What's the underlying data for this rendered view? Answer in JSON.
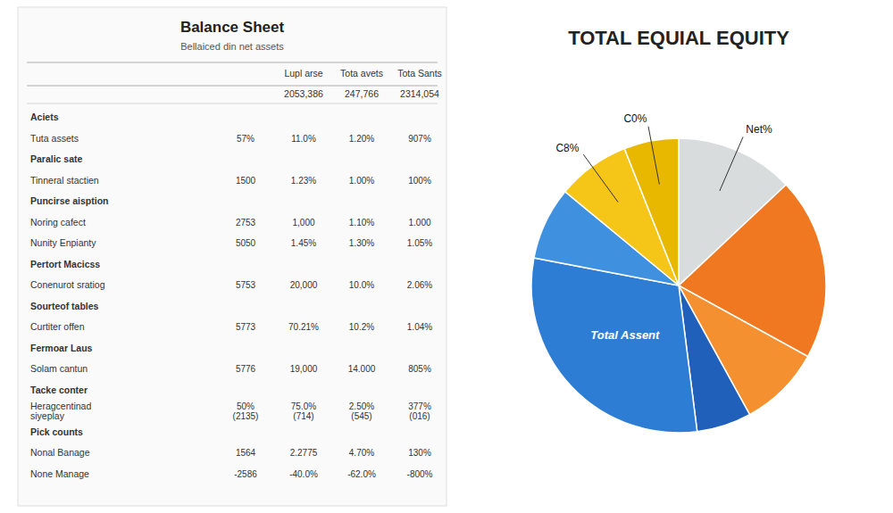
{
  "chart_data": [
    {
      "type": "pie",
      "title": "TOTAL EQUIAL EQUITY",
      "categories": [
        "Net%",
        null,
        null,
        null,
        "Total Assent",
        null,
        "C8%",
        "C0%"
      ],
      "values": [
        13,
        20,
        9,
        6,
        30,
        8,
        8,
        6
      ],
      "colors": [
        "#d8dcdc",
        "#f07820",
        "#f59030",
        "#2060bb",
        "#2e7dd4",
        "#4090e0",
        "#f5c518",
        "#e8b800"
      ]
    },
    {
      "type": "table",
      "title": "Balance Sheet",
      "subtitle": "Bellaiced din net assets",
      "columns": [
        null,
        "Lupl arse",
        "Tota avets",
        "Tota Sants"
      ],
      "subheaders": [
        null,
        "2053,386",
        "247,766",
        "2314,054"
      ],
      "rows": [
        [
          "Aciets"
        ],
        [
          "Tuta assets",
          "57%",
          "11.0%",
          "1.20%",
          "907%"
        ],
        [
          "Paralic sate"
        ],
        [
          "Tinneral stactien",
          "1500",
          "1.23%",
          "1.00%",
          "100%"
        ],
        [
          "Puncirse aisption"
        ],
        [
          "Noring cafect",
          "2753",
          "1,000",
          "1.10%",
          "1.000"
        ],
        [
          "Nunity Enpianty",
          "5050",
          "1.45%",
          "1.30%",
          "1.05%"
        ],
        [
          "Pertort Macicss"
        ],
        [
          "Conenurot sratiog",
          "5753",
          "20,000",
          "10.0%",
          "2.06%"
        ],
        [
          "Sourteof tables"
        ],
        [
          "Curtiter offen",
          "5773",
          "70.21%",
          "10.2%",
          "1.04%"
        ],
        [
          "Fermoar Laus"
        ],
        [
          "Solam cantun",
          "5776",
          "19,000",
          "14.000",
          "805%"
        ],
        [
          "Tacke conter"
        ],
        [
          "Heragcentinad\nsiyeplay",
          "50%\n(2135)",
          "75.0%\n(714)",
          "2.50%\n(545)",
          "377%\n(016)"
        ],
        [
          "Pick counts"
        ],
        [
          "Nonal Banage",
          "1564",
          "2.2775",
          "4.70%",
          "130%"
        ],
        [
          "None Manage",
          "-2586",
          "-40.0%",
          "-62.0%",
          "-800%"
        ]
      ]
    }
  ]
}
